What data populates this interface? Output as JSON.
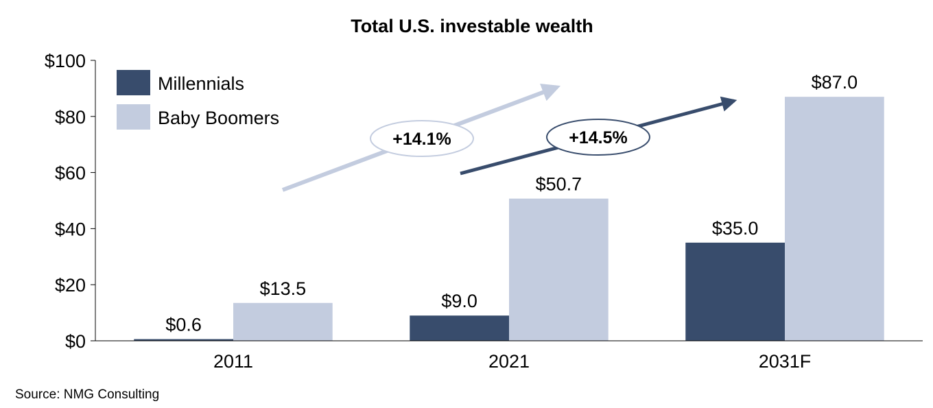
{
  "chart_data": {
    "type": "bar",
    "title": "Total U.S. investable wealth",
    "categories": [
      "2011",
      "2021",
      "2031F"
    ],
    "series": [
      {
        "name": "Millennials",
        "values": [
          0.6,
          9.0,
          35.0
        ],
        "labels": [
          "$0.6",
          "$9.0",
          "$35.0"
        ],
        "color": "#384C6C"
      },
      {
        "name": "Baby Boomers",
        "values": [
          13.5,
          50.7,
          87.0
        ],
        "labels": [
          "$13.5",
          "$50.7",
          "$87.0"
        ],
        "color": "#C3CCDF"
      }
    ],
    "ylim": [
      0,
      100
    ],
    "yticks": [
      0,
      20,
      40,
      60,
      80,
      100
    ],
    "ytick_labels": [
      "$0",
      "$20",
      "$40",
      "$60",
      "$80",
      "$100"
    ],
    "xlabel": "",
    "ylabel": "",
    "grid": false,
    "legend_position": "top-left",
    "annotations": [
      {
        "text": "+14.1%",
        "style": "light-arrow"
      },
      {
        "text": "+14.5%",
        "style": "dark-arrow"
      }
    ],
    "source": "Source: NMG Consulting"
  }
}
